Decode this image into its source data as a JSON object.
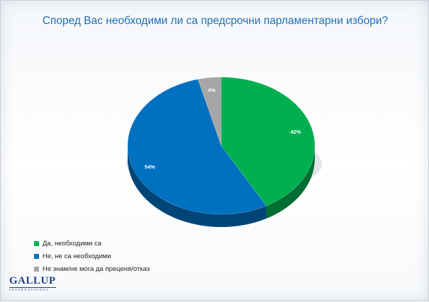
{
  "chart_data": {
    "type": "pie",
    "title": "Според Вас необходими ли са предсрочни парламентарни избори?",
    "categories": [
      "Да, необходими са",
      "Не, не са необходими",
      "Не знам/не мога да преценя/отказ"
    ],
    "values": [
      42,
      54,
      4
    ],
    "value_labels": [
      "42%",
      "54%",
      "4%"
    ],
    "colors": [
      "#00b050",
      "#0070c0",
      "#a6a6a6"
    ],
    "legend_position": "bottom-left"
  },
  "logo": {
    "main": "GALLUP",
    "sub": "INTERNATIONAL"
  }
}
